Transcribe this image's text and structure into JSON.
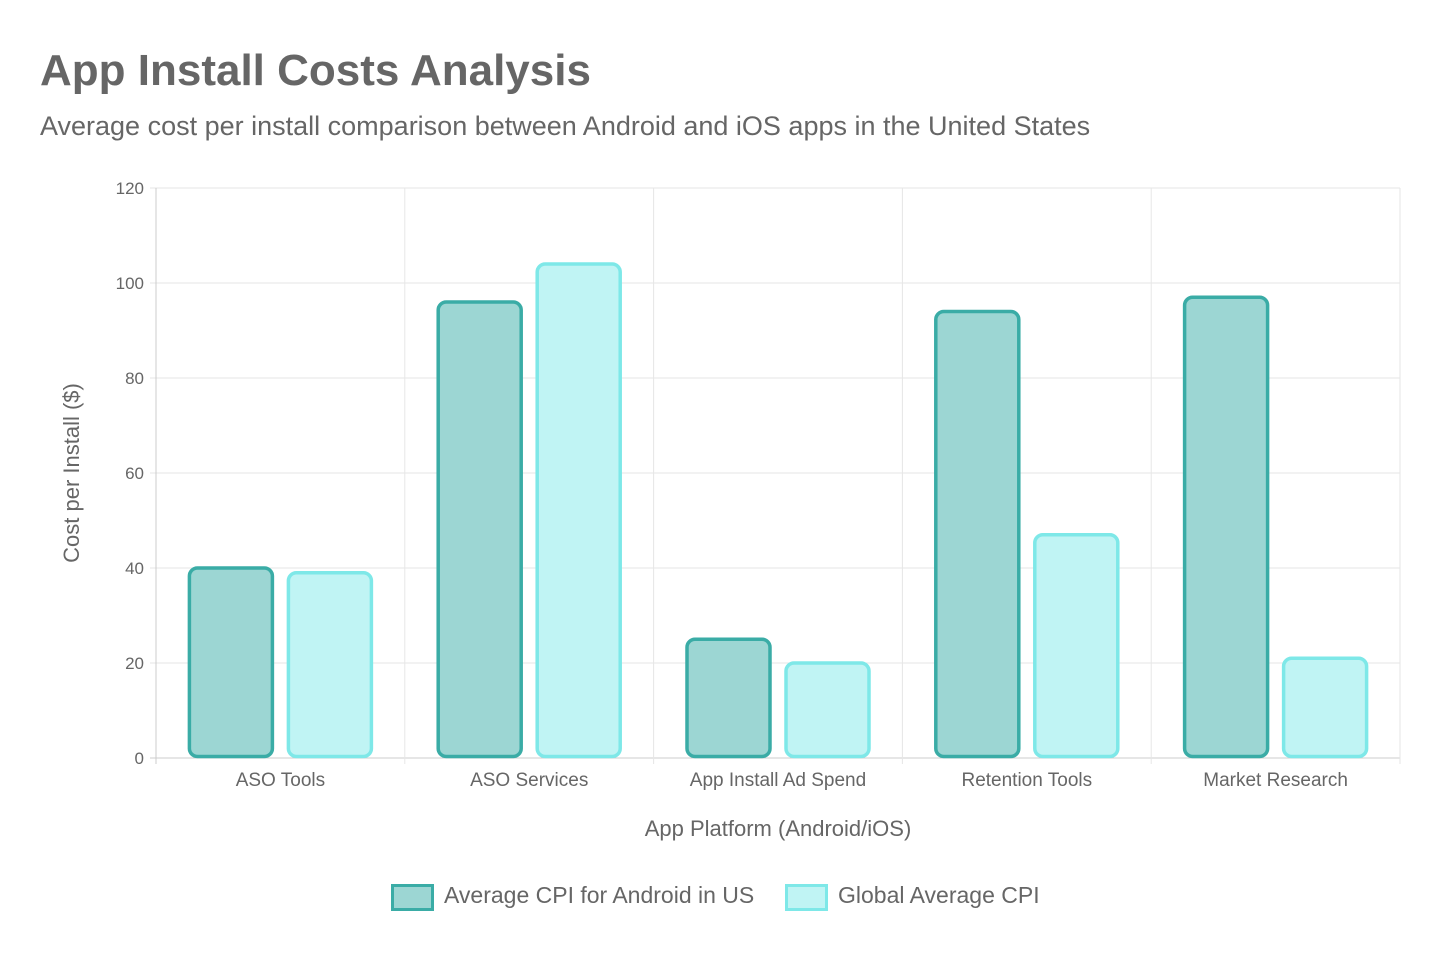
{
  "chart_data": {
    "type": "bar",
    "title": "App Install Costs Analysis",
    "subtitle": "Average cost per install comparison between Android and iOS apps in the United States",
    "xlabel": "App Platform (Android/iOS)",
    "ylabel": "Cost per Install ($)",
    "ylim": [
      0,
      120
    ],
    "yticks": [
      0,
      20,
      40,
      60,
      80,
      100,
      120
    ],
    "grid": true,
    "legend_position": "bottom",
    "categories": [
      "ASO Tools",
      "ASO Services",
      "App Install Ad Spend",
      "Retention Tools",
      "Market Research"
    ],
    "series": [
      {
        "name": "Average CPI for Android in US",
        "values": [
          40,
          96,
          25,
          94,
          97
        ],
        "fill": "#9cd6d3",
        "stroke": "#3aaca6"
      },
      {
        "name": "Global Average CPI",
        "values": [
          39,
          104,
          20,
          47,
          21
        ],
        "fill": "#c0f4f4",
        "stroke": "#7ee8e8"
      }
    ]
  }
}
